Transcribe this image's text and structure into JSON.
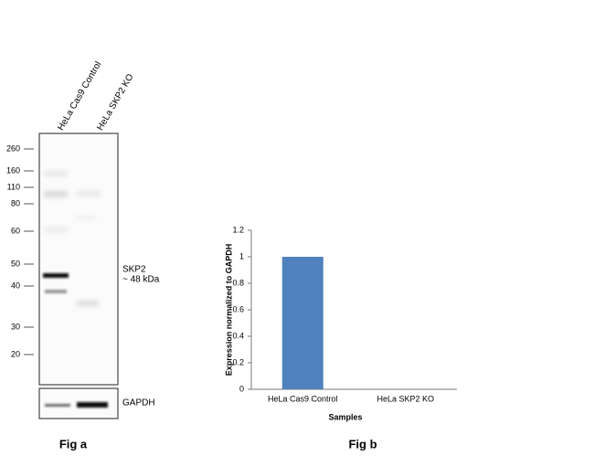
{
  "figure_a": {
    "lanes": [
      "HeLa Cas9 Control",
      "HeLa SKP2 KO"
    ],
    "markers": [
      260,
      160,
      110,
      80,
      60,
      50,
      40,
      30,
      20
    ],
    "band_label": "SKP2",
    "band_size": "~ 48 kDa",
    "loading_control": "GAPDH",
    "caption": "Fig a"
  },
  "chart_data": {
    "type": "bar",
    "caption": "Fig b",
    "xlabel": "Samples",
    "ylabel": "Expression  normalized to GAPDH",
    "categories": [
      "HeLa Cas9 Control",
      "HeLa SKP2 KO"
    ],
    "values": [
      1,
      0
    ],
    "color": "#4f81bd",
    "ylim": [
      0,
      1.2
    ],
    "yticks": [
      0,
      0.2,
      0.4,
      0.6,
      0.8,
      1,
      1.2
    ],
    "grid": false
  }
}
